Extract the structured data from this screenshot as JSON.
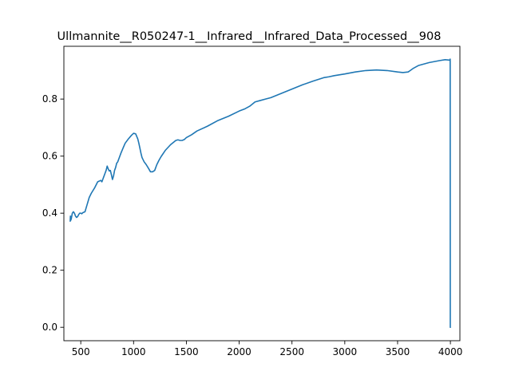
{
  "chart_data": {
    "type": "line",
    "title": "Ullmannite__R050247-1__Infrared__Infrared_Data_Processed__908",
    "xlabel": "",
    "ylabel": "",
    "xlim": [
      340,
      4090
    ],
    "ylim": [
      -0.047,
      0.985
    ],
    "xticks": [
      500,
      1000,
      1500,
      2000,
      2500,
      3000,
      3500,
      4000
    ],
    "yticks": [
      0.0,
      0.2,
      0.4,
      0.6,
      0.8
    ],
    "ytick_labels": [
      "0.0",
      "0.2",
      "0.4",
      "0.6",
      "0.8"
    ],
    "grid": false,
    "legend": "none",
    "series": [
      {
        "name": "",
        "color": "#1f77b4",
        "x": [
          400,
          402,
          405,
          410,
          415,
          420,
          430,
          440,
          450,
          460,
          470,
          480,
          490,
          500,
          510,
          520,
          540,
          560,
          580,
          600,
          630,
          660,
          690,
          700,
          710,
          720,
          730,
          740,
          750,
          760,
          770,
          780,
          790,
          800,
          810,
          820,
          830,
          840,
          850,
          860,
          880,
          900,
          920,
          950,
          980,
          1000,
          1020,
          1040,
          1050,
          1060,
          1070,
          1080,
          1100,
          1120,
          1140,
          1160,
          1180,
          1200,
          1210,
          1220,
          1240,
          1260,
          1300,
          1350,
          1400,
          1420,
          1440,
          1460,
          1480,
          1500,
          1550,
          1600,
          1700,
          1800,
          1900,
          2000,
          2050,
          2100,
          2150,
          2200,
          2250,
          2300,
          2400,
          2500,
          2600,
          2700,
          2800,
          2850,
          2900,
          3000,
          3100,
          3200,
          3300,
          3400,
          3500,
          3550,
          3600,
          3620,
          3650,
          3700,
          3800,
          3900,
          3950,
          3980,
          3995,
          3998,
          3999,
          4000
        ],
        "y": [
          0.372,
          0.39,
          0.375,
          0.38,
          0.39,
          0.4,
          0.405,
          0.4,
          0.39,
          0.385,
          0.388,
          0.395,
          0.4,
          0.4,
          0.398,
          0.402,
          0.405,
          0.43,
          0.455,
          0.47,
          0.488,
          0.51,
          0.515,
          0.51,
          0.52,
          0.53,
          0.54,
          0.55,
          0.565,
          0.555,
          0.548,
          0.55,
          0.535,
          0.518,
          0.53,
          0.55,
          0.56,
          0.575,
          0.58,
          0.59,
          0.61,
          0.628,
          0.645,
          0.66,
          0.673,
          0.68,
          0.678,
          0.66,
          0.645,
          0.628,
          0.61,
          0.595,
          0.58,
          0.57,
          0.558,
          0.545,
          0.545,
          0.55,
          0.56,
          0.57,
          0.585,
          0.598,
          0.62,
          0.64,
          0.655,
          0.657,
          0.655,
          0.655,
          0.658,
          0.665,
          0.675,
          0.688,
          0.705,
          0.725,
          0.74,
          0.758,
          0.765,
          0.775,
          0.79,
          0.795,
          0.8,
          0.805,
          0.82,
          0.835,
          0.85,
          0.863,
          0.875,
          0.878,
          0.882,
          0.888,
          0.895,
          0.9,
          0.902,
          0.9,
          0.895,
          0.893,
          0.895,
          0.9,
          0.908,
          0.918,
          0.928,
          0.935,
          0.938,
          0.937,
          0.936,
          0.94,
          0.0,
          0.0
        ]
      }
    ]
  }
}
